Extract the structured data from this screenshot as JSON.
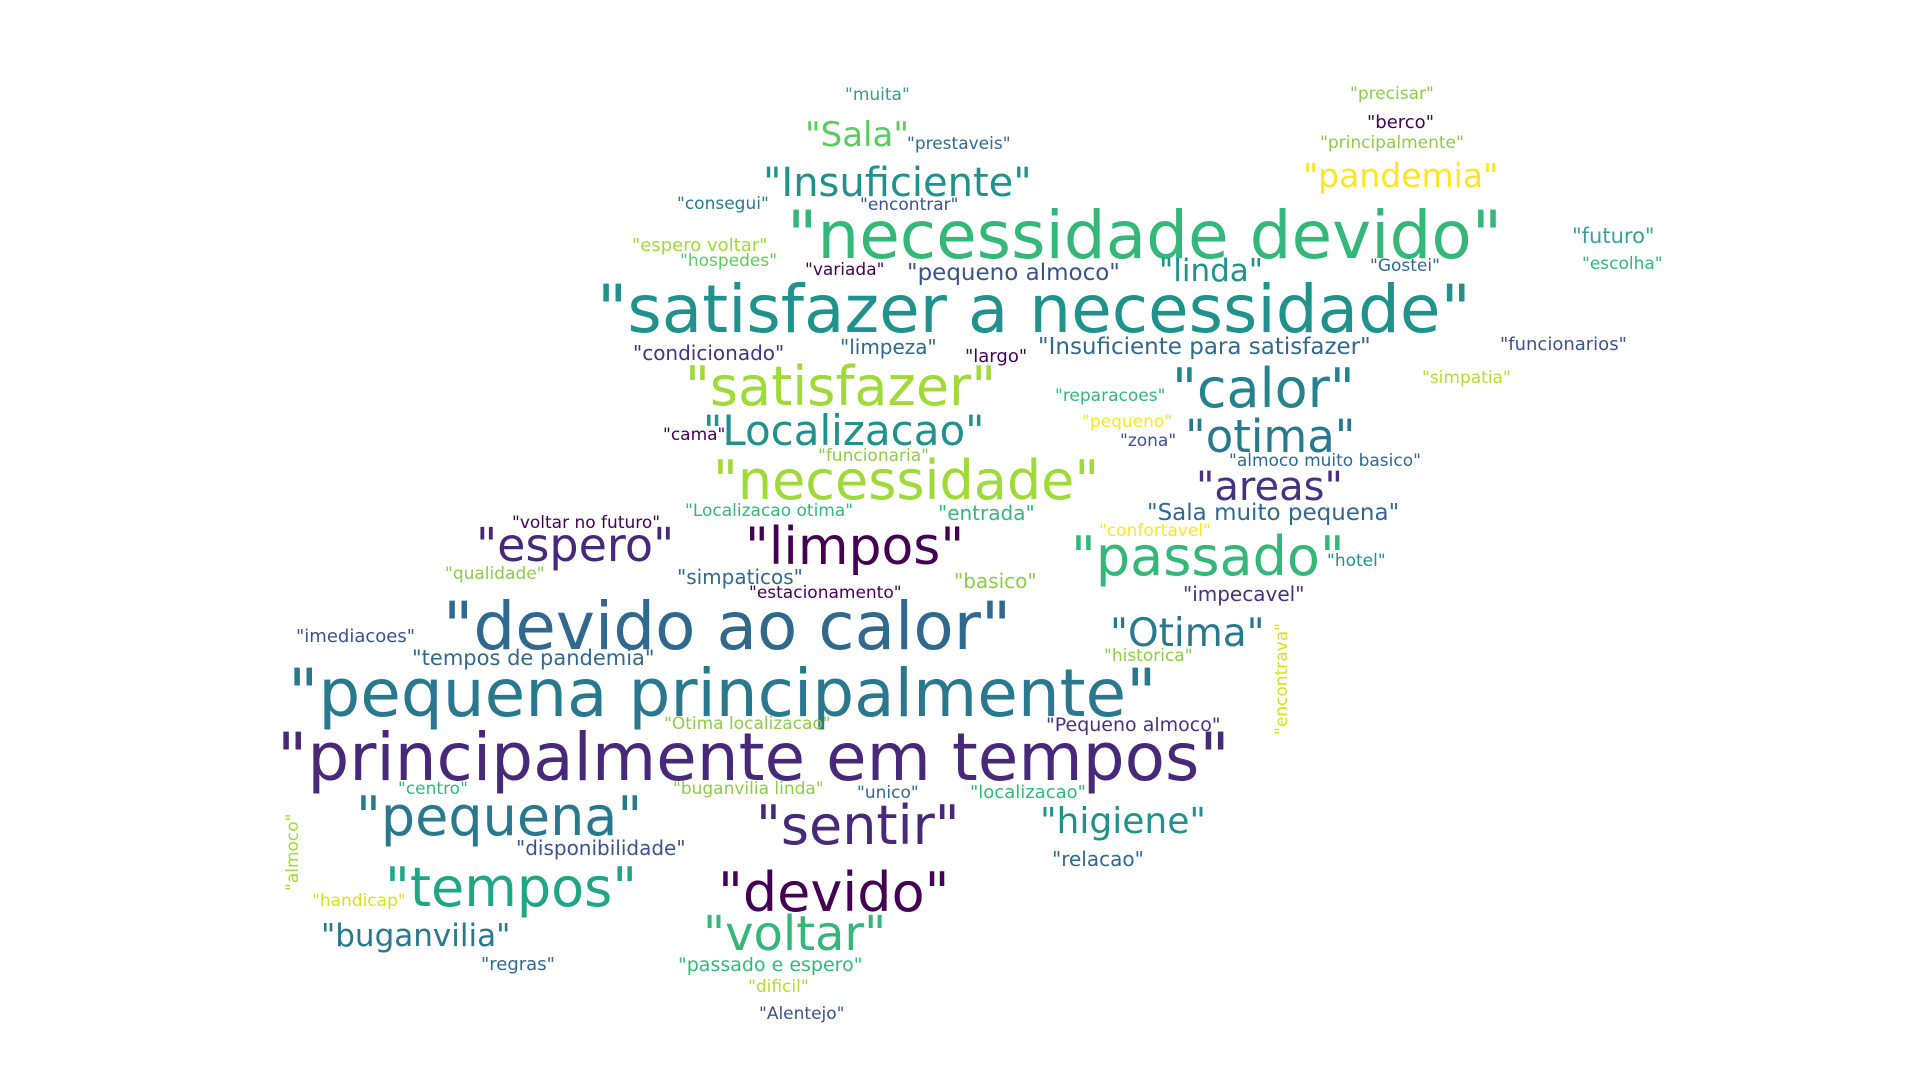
{
  "word_cloud": {
    "words": [
      {
        "text": "\"muita\"",
        "color": "#3a9c8a"
      },
      {
        "text": "\"precisar\"",
        "color": "#8fcb4a"
      },
      {
        "text": "\"Sala\"",
        "color": "#5ec962"
      },
      {
        "text": "\"berco\"",
        "color": "#440154"
      },
      {
        "text": "\"prestaveis\"",
        "color": "#31688e"
      },
      {
        "text": "\"principalmente\"",
        "color": "#8fcb4a"
      },
      {
        "text": "\"Insuficiente\"",
        "color": "#21918c"
      },
      {
        "text": "\"pandemia\"",
        "color": "#fde725"
      },
      {
        "text": "\"consegui\"",
        "color": "#2a788e"
      },
      {
        "text": "\"encontrar\"",
        "color": "#3b528b"
      },
      {
        "text": "\"necessidade devido\"",
        "color": "#35b779"
      },
      {
        "text": "\"futuro\"",
        "color": "#3b9f9a"
      },
      {
        "text": "\"espero voltar\"",
        "color": "#a0da39"
      },
      {
        "text": "\"hospedes\"",
        "color": "#5ec962"
      },
      {
        "text": "\"variada\"",
        "color": "#440154"
      },
      {
        "text": "\"pequeno almoco\"",
        "color": "#3b528b"
      },
      {
        "text": "\"linda\"",
        "color": "#21918c"
      },
      {
        "text": "\"Gostei\"",
        "color": "#31688e"
      },
      {
        "text": "\"escolha\"",
        "color": "#35b779"
      },
      {
        "text": "\"satisfazer a necessidade\"",
        "color": "#21918c"
      },
      {
        "text": "\"condicionado\"",
        "color": "#46327e"
      },
      {
        "text": "\"limpeza\"",
        "color": "#31688e"
      },
      {
        "text": "\"largo\"",
        "color": "#440154"
      },
      {
        "text": "\"Insuficiente para satisfazer\"",
        "color": "#31688e"
      },
      {
        "text": "\"funcionarios\"",
        "color": "#3b528b"
      },
      {
        "text": "\"satisfazer\"",
        "color": "#a0da39"
      },
      {
        "text": "\"calor\"",
        "color": "#26828e"
      },
      {
        "text": "\"simpatia\"",
        "color": "#b5de2b"
      },
      {
        "text": "\"reparacoes\"",
        "color": "#35b779"
      },
      {
        "text": "\"Localizacao\"",
        "color": "#21918c"
      },
      {
        "text": "\"cama\"",
        "color": "#440154"
      },
      {
        "text": "\"pequeno\"",
        "color": "#fde725"
      },
      {
        "text": "\"zona\"",
        "color": "#3b528b"
      },
      {
        "text": "\"otima\"",
        "color": "#2a788e"
      },
      {
        "text": "\"funcionaria\"",
        "color": "#8fcb4a"
      },
      {
        "text": "\"almoco muito basico\"",
        "color": "#31688e"
      },
      {
        "text": "\"necessidade\"",
        "color": "#a0da39"
      },
      {
        "text": "\"areas\"",
        "color": "#46327e"
      },
      {
        "text": "\"voltar no futuro\"",
        "color": "#440154"
      },
      {
        "text": "\"Localizacao otima\"",
        "color": "#35b779"
      },
      {
        "text": "\"entrada\"",
        "color": "#35b779"
      },
      {
        "text": "\"Sala muito pequena\"",
        "color": "#31688e"
      },
      {
        "text": "\"confortavel\"",
        "color": "#fde725"
      },
      {
        "text": "\"espero\"",
        "color": "#482878"
      },
      {
        "text": "\"limpos\"",
        "color": "#440154"
      },
      {
        "text": "\"passado\"",
        "color": "#35b779"
      },
      {
        "text": "\"qualidade\"",
        "color": "#8fcb4a"
      },
      {
        "text": "\"simpaticos\"",
        "color": "#31688e"
      },
      {
        "text": "\"basico\"",
        "color": "#8fcb4a"
      },
      {
        "text": "\"hotel\"",
        "color": "#21918c"
      },
      {
        "text": "\"estacionamento\"",
        "color": "#440154"
      },
      {
        "text": "\"impecavel\"",
        "color": "#46327e"
      },
      {
        "text": "\"devido ao calor\"",
        "color": "#31688e"
      },
      {
        "text": "\"Otima\"",
        "color": "#2a788e"
      },
      {
        "text": "\"imediacoes\"",
        "color": "#3b528b"
      },
      {
        "text": "\"tempos de pandemia\"",
        "color": "#31688e"
      },
      {
        "text": "\"historica\"",
        "color": "#8fcb4a"
      },
      {
        "text": "\"encontrava\"",
        "color": "#d8e219"
      },
      {
        "text": "\"pequena principalmente\"",
        "color": "#2a788e"
      },
      {
        "text": "\"Otima localizacao\"",
        "color": "#8fcb4a"
      },
      {
        "text": "\"Pequeno almoco\"",
        "color": "#46327e"
      },
      {
        "text": "\"principalmente em tempos\"",
        "color": "#482878"
      },
      {
        "text": "\"centro\"",
        "color": "#35b779"
      },
      {
        "text": "\"buganvilia linda\"",
        "color": "#8fcb4a"
      },
      {
        "text": "\"unico\"",
        "color": "#31688e"
      },
      {
        "text": "\"localizacao\"",
        "color": "#35b779"
      },
      {
        "text": "\"almoco\"",
        "color": "#a0da39"
      },
      {
        "text": "\"pequena\"",
        "color": "#2a788e"
      },
      {
        "text": "\"sentir\"",
        "color": "#482878"
      },
      {
        "text": "\"higiene\"",
        "color": "#21918c"
      },
      {
        "text": "\"disponibilidade\"",
        "color": "#3b528b"
      },
      {
        "text": "\"relacao\"",
        "color": "#31688e"
      },
      {
        "text": "\"tempos\"",
        "color": "#21a685"
      },
      {
        "text": "\"devido\"",
        "color": "#440154"
      },
      {
        "text": "\"handicap\"",
        "color": "#d8e219"
      },
      {
        "text": "\"buganvilia\"",
        "color": "#2a788e"
      },
      {
        "text": "\"voltar\"",
        "color": "#35b779"
      },
      {
        "text": "\"regras\"",
        "color": "#31688e"
      },
      {
        "text": "\"passado e espero\"",
        "color": "#35b779"
      },
      {
        "text": "\"dificil\"",
        "color": "#b5de2b"
      },
      {
        "text": "\"Alentejo\"",
        "color": "#3b528b"
      }
    ]
  }
}
